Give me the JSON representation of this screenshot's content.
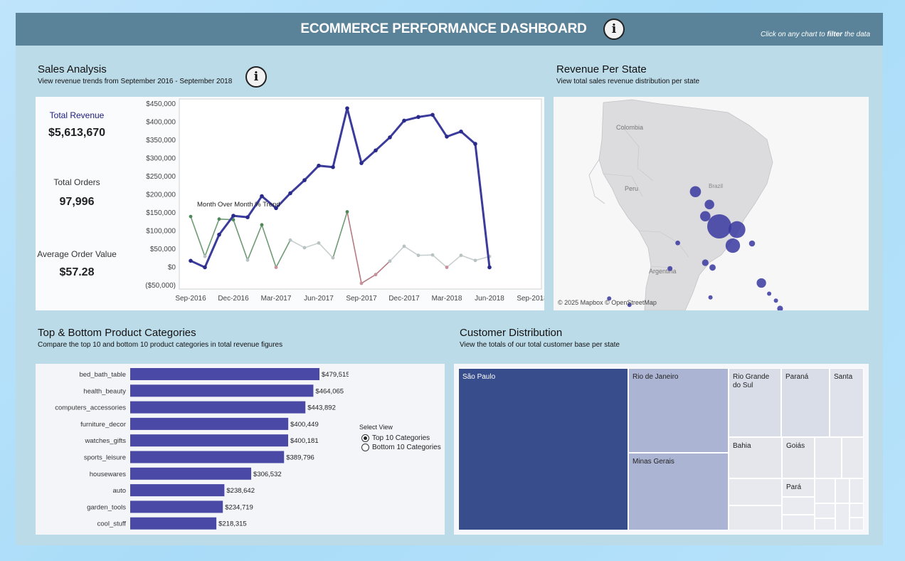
{
  "header": {
    "title": "ECOMMERCE PERFORMANCE DASHBOARD",
    "info_glyph": "i",
    "hint_pre": "Click on any chart to ",
    "hint_bold": "filter",
    "hint_post": " the data"
  },
  "sales": {
    "title": "Sales Analysis",
    "subtitle": "View revenue trends from September 2016 - September 2018",
    "kpis": [
      {
        "label": "Total Revenue",
        "value": "$5,613,670"
      },
      {
        "label": "Total Orders",
        "value": "97,996"
      },
      {
        "label": "Average Order Value",
        "value": "$57.28"
      }
    ],
    "mom_label": "Month Over Month % Trend"
  },
  "map": {
    "title": "Revenue Per State",
    "subtitle": "View total sales revenue distribution per state",
    "attribution": "© 2025 Mapbox  © OpenStreetMap",
    "country_labels": [
      "Colombia",
      "Peru",
      "Brazil",
      "Argentina"
    ]
  },
  "categories": {
    "title": "Top & Bottom Product Categories",
    "subtitle": "Compare the top 10 and bottom 10 product categories in total revenue figures",
    "select_label": "Select View",
    "options": [
      {
        "label": "Top 10 Categories",
        "selected": true
      },
      {
        "label": "Bottom 10 Categories",
        "selected": false
      }
    ]
  },
  "customers": {
    "title": "Customer Distribution",
    "subtitle": "View the totals of our total customer base per state",
    "tiles": [
      "São Paulo",
      "Rio de Janeiro",
      "Minas Gerais",
      "Rio Grande do Sul",
      "Paraná",
      "Santa",
      "Bahia",
      "Goiás",
      "Pará"
    ]
  },
  "chart_data": [
    {
      "type": "line",
      "name": "revenue_trend",
      "x": [
        "Sep-2016",
        "Oct-2016",
        "Nov-2016",
        "Dec-2016",
        "Jan-2017",
        "Feb-2017",
        "Mar-2017",
        "Apr-2017",
        "May-2017",
        "Jun-2017",
        "Jul-2017",
        "Aug-2017",
        "Sep-2017",
        "Oct-2017",
        "Nov-2017",
        "Dec-2017",
        "Jan-2018",
        "Feb-2018",
        "Mar-2018",
        "Apr-2018",
        "May-2018",
        "Jun-2018",
        "Jul-2018",
        "Aug-2018",
        "Sep-2018"
      ],
      "x_tick_labels": [
        "Sep-2016",
        "Dec-2016",
        "Mar-2017",
        "Jun-2017",
        "Sep-2017",
        "Dec-2017",
        "Mar-2018",
        "Jun-2018",
        "Sep-2018"
      ],
      "series": [
        {
          "values": [
            18000,
            0,
            90000,
            142000,
            138000,
            196000,
            163000,
            204000,
            240000,
            280000,
            276000,
            438000,
            287000,
            322000,
            358000,
            404000,
            414000,
            420000,
            360000,
            374000,
            340000,
            0,
            null,
            null,
            null
          ]
        },
        {
          "values": [
            140000,
            30000,
            133000,
            131000,
            20000,
            117000,
            0,
            75000,
            54000,
            67000,
            26000,
            153000,
            -44000,
            -20000,
            17000,
            58000,
            33000,
            34000,
            0,
            33000,
            19000,
            30000,
            null,
            null,
            null
          ]
        }
      ],
      "ytick_labels": [
        "$450,000",
        "$400,000",
        "$350,000",
        "$300,000",
        "$250,000",
        "$200,000",
        "$150,000",
        "$100,000",
        "$50,000",
        "$0",
        "($50,000)"
      ],
      "ylim": [
        -50000,
        450000
      ],
      "grid": false
    },
    {
      "type": "scatter",
      "name": "revenue_per_state",
      "points": [
        {
          "lon": -46.6,
          "lat": -23.5,
          "revenue": 1900000
        },
        {
          "lon": -43.2,
          "lat": -22.9,
          "revenue": 920000
        },
        {
          "lon": -44.0,
          "lat": -19.9,
          "revenue": 680000
        },
        {
          "lon": -51.2,
          "lat": -30.0,
          "revenue": 400000
        },
        {
          "lon": -49.3,
          "lat": -25.4,
          "revenue": 350000
        },
        {
          "lon": -48.5,
          "lat": -27.6,
          "revenue": 300000
        },
        {
          "lon": -38.5,
          "lat": -12.9,
          "revenue": 290000
        },
        {
          "lon": -49.3,
          "lat": -16.7,
          "revenue": 140000
        },
        {
          "lon": -47.9,
          "lat": -15.8,
          "revenue": 130000
        },
        {
          "lon": -40.3,
          "lat": -20.3,
          "revenue": 120000
        },
        {
          "lon": -34.9,
          "lat": -8.1,
          "revenue": 110000
        },
        {
          "lon": -38.5,
          "lat": -3.7,
          "revenue": 100000
        },
        {
          "lon": -48.5,
          "lat": -1.4,
          "revenue": 95000
        },
        {
          "lon": -56.1,
          "lat": -15.6,
          "revenue": 80000
        },
        {
          "lon": -54.6,
          "lat": -20.4,
          "revenue": 75000
        },
        {
          "lon": -44.3,
          "lat": -2.5,
          "revenue": 70000
        },
        {
          "lon": -37.0,
          "lat": -10.9,
          "revenue": 60000
        },
        {
          "lon": -35.7,
          "lat": -9.6,
          "revenue": 55000
        },
        {
          "lon": -34.8,
          "lat": -7.1,
          "revenue": 50000
        },
        {
          "lon": -35.2,
          "lat": -5.8,
          "revenue": 45000
        },
        {
          "lon": -42.8,
          "lat": -5.1,
          "revenue": 40000
        },
        {
          "lon": -60.0,
          "lat": -3.1,
          "revenue": 38000
        },
        {
          "lon": -48.3,
          "lat": -10.2,
          "revenue": 30000
        },
        {
          "lon": -63.9,
          "lat": -8.8,
          "revenue": 28000
        },
        {
          "lon": -51.1,
          "lat": 0.0,
          "revenue": 20000
        },
        {
          "lon": -67.8,
          "lat": -10.0,
          "revenue": 15000
        },
        {
          "lon": -60.7,
          "lat": 2.8,
          "revenue": 10000
        }
      ]
    },
    {
      "type": "bar",
      "name": "top_product_categories",
      "categories": [
        "bed_bath_table",
        "health_beauty",
        "computers_accessories",
        "furniture_decor",
        "watches_gifts",
        "sports_leisure",
        "housewares",
        "auto",
        "garden_tools",
        "cool_stuff"
      ],
      "values": [
        479515,
        464065,
        443892,
        400449,
        400181,
        389796,
        306532,
        238642,
        234719,
        218315
      ],
      "data_labels": [
        "$479,515",
        "$464,065",
        "$443,892",
        "$400,449",
        "$400,181",
        "$389,796",
        "$306,532",
        "$238,642",
        "$234,719",
        "$218,315"
      ]
    }
  ],
  "colors": {
    "header": "#5a8399",
    "revenue_line": "#3b3b9c",
    "bar": "#4a4aa6",
    "map_bubble": "#3838a0",
    "treemap_primary": "#384d8c",
    "treemap_secondary": "#abb4d3",
    "treemap_light": "#d9dde8"
  }
}
